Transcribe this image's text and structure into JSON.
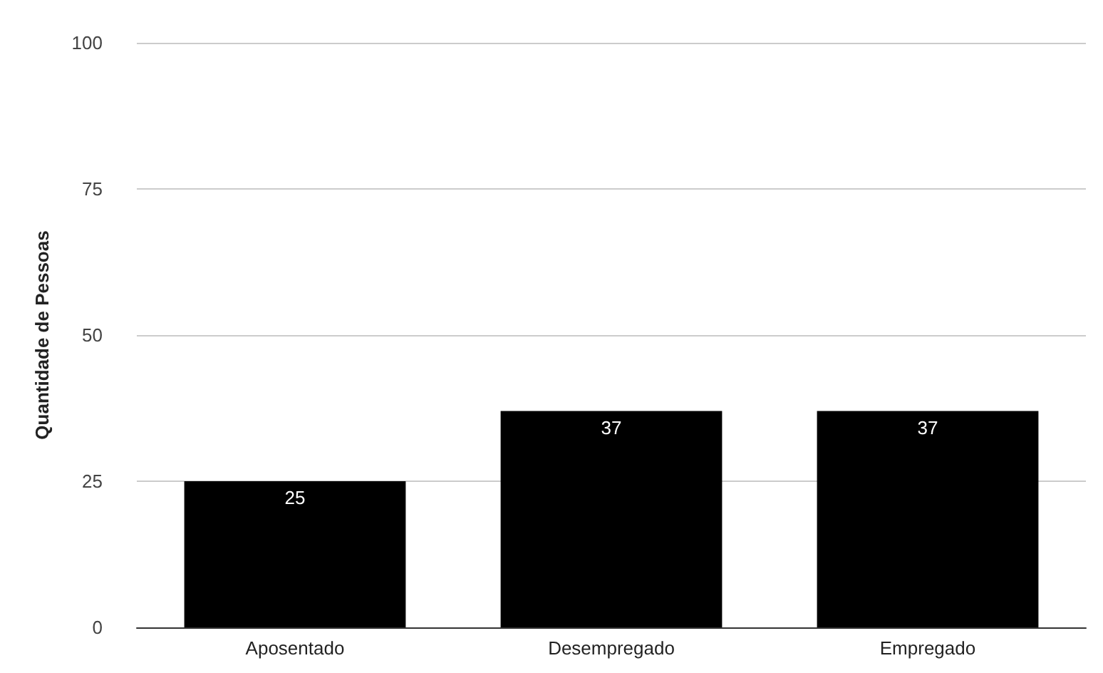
{
  "chart_data": {
    "type": "bar",
    "ylabel": "Quantidade de Pessoas",
    "categories": [
      "Aposentado",
      "Desempregado",
      "Empregado"
    ],
    "values": [
      25,
      37,
      37
    ],
    "color": "#000000",
    "ylim": [
      0,
      100
    ],
    "yticks": [
      0,
      25,
      50,
      75,
      100
    ],
    "grid": "y",
    "data_labels": true
  }
}
